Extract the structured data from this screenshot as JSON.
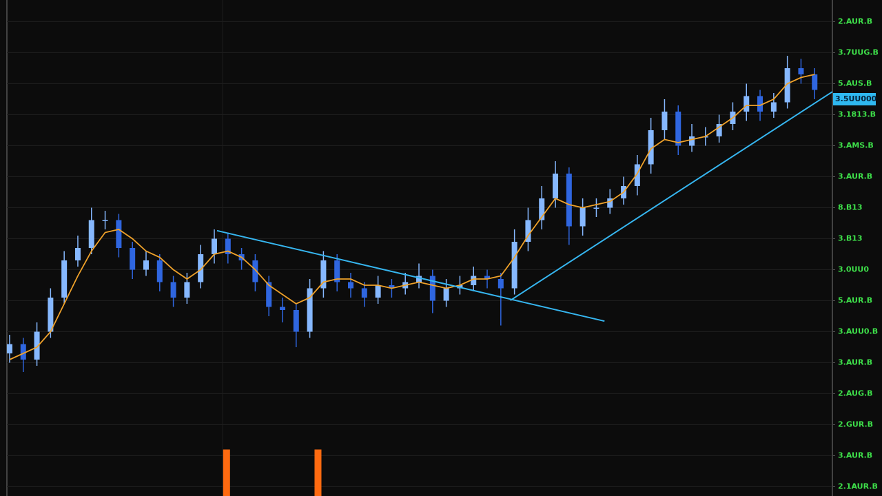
{
  "chart_data": {
    "type": "candlestick",
    "xlim": [
      -0.2,
      60.3
    ],
    "ylim": [
      0,
      16
    ],
    "yticks": [
      {
        "value": 15.3,
        "label": "2.AUR.B"
      },
      {
        "value": 14.3,
        "label": "3.7UUG.B"
      },
      {
        "value": 13.3,
        "label": "5.AUS.B"
      },
      {
        "value": 12.3,
        "label": "3.1813.B"
      },
      {
        "value": 11.3,
        "label": "3.AMS.B"
      },
      {
        "value": 10.3,
        "label": "3.AUR.B"
      },
      {
        "value": 9.3,
        "label": "8.B13"
      },
      {
        "value": 8.3,
        "label": "3.B13"
      },
      {
        "value": 7.3,
        "label": "3.0UU0"
      },
      {
        "value": 6.3,
        "label": "5.AUR.B"
      },
      {
        "value": 5.3,
        "label": "3.AUU0.B"
      },
      {
        "value": 4.3,
        "label": "3.AUR.B"
      },
      {
        "value": 3.3,
        "label": "2.AUG.B"
      },
      {
        "value": 2.3,
        "label": "2.GUR.B"
      },
      {
        "value": 1.3,
        "label": "3.AUR.B"
      },
      {
        "value": 0.3,
        "label": "2.1AUR.B"
      }
    ],
    "grid": true,
    "up_color": "#86b8ff",
    "down_color": "#2f66e0",
    "open": [
      4.6,
      4.9,
      4.4,
      5.3,
      6.4,
      7.6,
      8.0,
      8.9,
      8.9,
      8.0,
      7.3,
      7.6,
      6.9,
      6.4,
      6.9,
      7.8,
      8.3,
      7.8,
      7.6,
      6.9,
      6.1,
      6.0,
      5.3,
      6.7,
      7.6,
      6.9,
      6.7,
      6.4,
      6.8,
      6.7,
      6.9,
      7.1,
      6.3,
      6.7,
      6.8,
      7.1,
      7.0,
      6.7,
      8.2,
      8.9,
      9.6,
      10.4,
      8.7,
      9.3,
      9.3,
      9.6,
      10.0,
      10.7,
      11.8,
      12.4,
      11.3,
      11.6,
      11.6,
      12.0,
      12.4,
      12.9,
      12.4,
      12.7,
      13.8,
      13.6
    ],
    "high": [
      5.2,
      5.1,
      5.6,
      6.7,
      7.9,
      8.4,
      9.3,
      9.2,
      9.1,
      8.2,
      7.9,
      7.8,
      7.1,
      7.2,
      8.1,
      8.6,
      8.5,
      8.0,
      7.8,
      7.1,
      6.4,
      6.2,
      7.0,
      7.9,
      7.8,
      7.2,
      6.9,
      7.1,
      7.0,
      7.2,
      7.5,
      7.3,
      7.0,
      7.1,
      7.4,
      7.3,
      7.2,
      8.6,
      9.3,
      10.0,
      10.8,
      10.6,
      9.6,
      9.6,
      9.9,
      10.3,
      11.0,
      12.2,
      12.8,
      12.6,
      12.0,
      11.9,
      12.3,
      12.7,
      13.3,
      13.1,
      13.0,
      14.2,
      14.1,
      13.8
    ],
    "low": [
      4.3,
      4.0,
      4.2,
      5.1,
      6.2,
      7.4,
      7.8,
      8.6,
      7.7,
      7.0,
      7.1,
      6.6,
      6.1,
      6.2,
      6.7,
      7.5,
      7.5,
      7.3,
      6.6,
      5.8,
      5.6,
      4.8,
      5.1,
      6.4,
      6.6,
      6.4,
      6.1,
      6.2,
      6.4,
      6.5,
      6.7,
      5.9,
      6.1,
      6.5,
      6.6,
      6.7,
      5.5,
      6.5,
      7.9,
      8.6,
      9.3,
      8.1,
      8.4,
      9.0,
      9.1,
      9.4,
      9.7,
      10.4,
      11.5,
      11.0,
      11.1,
      11.3,
      11.4,
      11.8,
      12.1,
      12.1,
      12.2,
      12.5,
      13.3,
      12.8
    ],
    "close": [
      4.9,
      4.4,
      5.3,
      6.4,
      7.6,
      8.0,
      8.9,
      8.9,
      8.0,
      7.3,
      7.6,
      6.9,
      6.4,
      6.9,
      7.8,
      8.3,
      7.8,
      7.6,
      6.9,
      6.1,
      6.0,
      5.3,
      6.7,
      7.6,
      6.9,
      6.7,
      6.4,
      6.8,
      6.7,
      6.9,
      7.1,
      6.3,
      6.7,
      6.8,
      7.1,
      7.0,
      6.7,
      8.2,
      8.9,
      9.6,
      10.4,
      8.7,
      9.3,
      9.3,
      9.6,
      10.0,
      10.7,
      11.8,
      12.4,
      11.3,
      11.6,
      11.6,
      12.0,
      12.4,
      12.9,
      12.4,
      12.7,
      13.8,
      13.6,
      13.1
    ],
    "moving_average": {
      "color": "#f0a22a",
      "values": [
        4.4,
        4.6,
        4.8,
        5.3,
        6.2,
        7.1,
        7.9,
        8.5,
        8.6,
        8.3,
        7.9,
        7.7,
        7.3,
        7.0,
        7.3,
        7.8,
        7.9,
        7.7,
        7.3,
        6.8,
        6.5,
        6.2,
        6.4,
        6.9,
        7.0,
        7.0,
        6.8,
        6.8,
        6.7,
        6.8,
        6.9,
        6.8,
        6.7,
        6.8,
        7.0,
        7.0,
        7.1,
        7.7,
        8.4,
        9.0,
        9.6,
        9.4,
        9.3,
        9.4,
        9.5,
        9.8,
        10.4,
        11.2,
        11.5,
        11.4,
        11.5,
        11.6,
        11.9,
        12.2,
        12.6,
        12.6,
        12.8,
        13.3,
        13.5,
        13.6
      ]
    },
    "trendlines": [
      {
        "color": "#36b6f0",
        "x": [
          15.2,
          43.6
        ],
        "y": [
          8.56,
          5.64
        ]
      },
      {
        "color": "#36b6f0",
        "x": [
          36.7,
          60.3
        ],
        "y": [
          6.31,
          13.04
        ]
      }
    ],
    "volume_bars": {
      "color": "#ff6a10",
      "x": [
        15.9,
        22.6
      ],
      "values": [
        1.5,
        1.5
      ]
    },
    "last_price": {
      "value": 12.8,
      "label": "3.5UU000",
      "color": "#2fb8f0"
    }
  }
}
